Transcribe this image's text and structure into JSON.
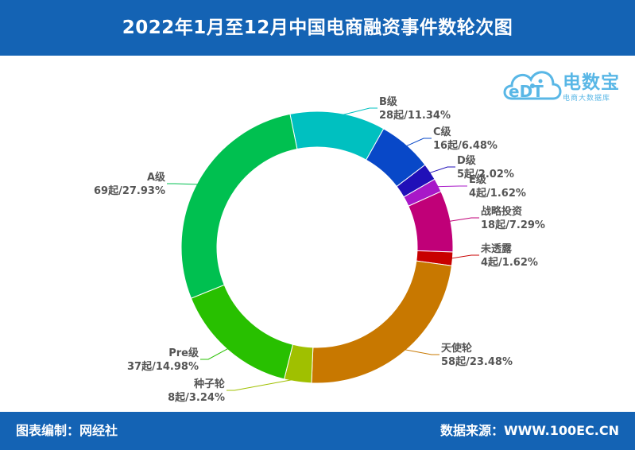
{
  "title": "2022年1月至12月中国电商融资事件数轮次图",
  "footer": {
    "left": "图表编制：网经社",
    "right": "数据来源：WWW.100EC.CN"
  },
  "logo": {
    "mark": "eDT",
    "name": "电数宝",
    "tagline": "电商大数据库"
  },
  "colors": {
    "header_bg": "#1463b4",
    "brand": "#59b7e6"
  },
  "chart_data": {
    "type": "pie",
    "style": "donut",
    "start_angle_deg": -11.5,
    "slices": [
      {
        "name": "B级",
        "count": 28,
        "value": 11.34,
        "label": "28起/11.34%",
        "color": "#00c0c0"
      },
      {
        "name": "C级",
        "count": 16,
        "value": 6.48,
        "label": "16起/6.48%",
        "color": "#0848c8"
      },
      {
        "name": "D级",
        "count": 5,
        "value": 2.02,
        "label": "5起/2.02%",
        "color": "#2010b8"
      },
      {
        "name": "E级",
        "count": 4,
        "value": 1.62,
        "label": "4起/1.62%",
        "color": "#a818c8"
      },
      {
        "name": "战略投资",
        "count": 18,
        "value": 7.29,
        "label": "18起/7.29%",
        "color": "#c00078"
      },
      {
        "name": "未透露",
        "count": 4,
        "value": 1.62,
        "label": "4起/1.62%",
        "color": "#c80000"
      },
      {
        "name": "天使轮",
        "count": 58,
        "value": 23.48,
        "label": "58起/23.48%",
        "color": "#c87800"
      },
      {
        "name": "种子轮",
        "count": 8,
        "value": 3.24,
        "label": "8起/3.24%",
        "color": "#a0c000"
      },
      {
        "name": "Pre级",
        "count": 37,
        "value": 14.98,
        "label": "37起/14.98%",
        "color": "#28c000"
      },
      {
        "name": "A级",
        "count": 69,
        "value": 27.93,
        "label": "69起/27.93%",
        "color": "#00c050"
      }
    ]
  }
}
